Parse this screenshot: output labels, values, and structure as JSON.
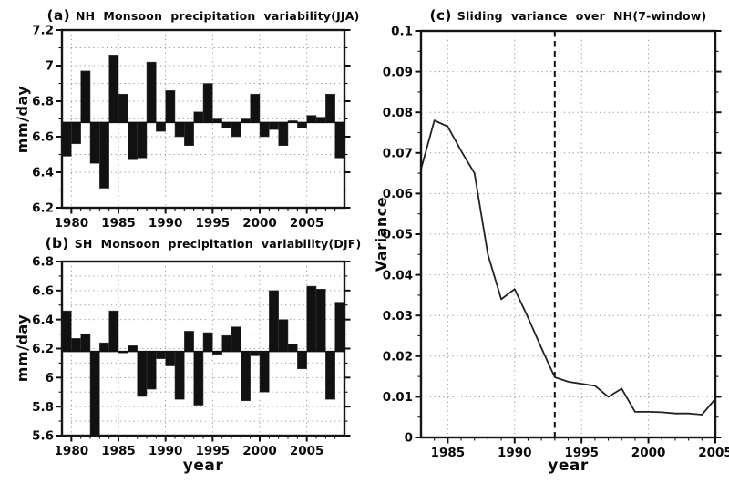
{
  "figure": {
    "background": "#ffffff",
    "ink": "#0a0a0a",
    "grid_color": "#9a9a9a",
    "bar_color": "#111111",
    "line_color": "#222222"
  },
  "chart_data": [
    {
      "id": "panel-a",
      "type": "bar",
      "title_prefix": "(a)",
      "title": "NH Monsoon precipitation variability(JJA)",
      "ylabel": "mm/day",
      "xlabel": "",
      "ylim": [
        6.2,
        7.2
      ],
      "xlim": [
        1979,
        2009
      ],
      "baseline": 6.68,
      "grid": "dotted",
      "yticks": [
        [
          6.2,
          "6.2"
        ],
        [
          6.4,
          "6.4"
        ],
        [
          6.6,
          "6.6"
        ],
        [
          6.8,
          "6.8"
        ],
        [
          7,
          "7"
        ],
        [
          7.2,
          "7.2"
        ]
      ],
      "xticks": [
        [
          1980,
          "1980"
        ],
        [
          1985,
          "1985"
        ],
        [
          1990,
          "1990"
        ],
        [
          1995,
          "1995"
        ],
        [
          2000,
          "2000"
        ],
        [
          2005,
          "2005"
        ]
      ],
      "yminor_step": 0.1,
      "xminor_step": 1,
      "ygrid_step": 0.1,
      "categories": [
        1979,
        1980,
        1981,
        1982,
        1983,
        1984,
        1985,
        1986,
        1987,
        1988,
        1989,
        1990,
        1991,
        1992,
        1993,
        1994,
        1995,
        1996,
        1997,
        1998,
        1999,
        2000,
        2001,
        2002,
        2003,
        2004,
        2005,
        2006,
        2007,
        2008
      ],
      "values": [
        6.49,
        6.56,
        6.97,
        6.45,
        6.31,
        7.06,
        6.84,
        6.47,
        6.48,
        7.02,
        6.63,
        6.86,
        6.6,
        6.55,
        6.74,
        6.9,
        6.7,
        6.65,
        6.6,
        6.7,
        6.84,
        6.6,
        6.64,
        6.55,
        6.69,
        6.65,
        6.72,
        6.71,
        6.84,
        6.48
      ]
    },
    {
      "id": "panel-b",
      "type": "bar",
      "title_prefix": "(b)",
      "title": "SH Monsoon precipitation variability(DJF)",
      "ylabel": "mm/day",
      "xlabel": "year",
      "ylim": [
        5.6,
        6.8
      ],
      "xlim": [
        1979,
        2009
      ],
      "baseline": 6.18,
      "grid": "dotted",
      "yticks": [
        [
          5.6,
          "5.6"
        ],
        [
          5.8,
          "5.8"
        ],
        [
          6,
          "6"
        ],
        [
          6.2,
          "6.2"
        ],
        [
          6.4,
          "6.4"
        ],
        [
          6.6,
          "6.6"
        ],
        [
          6.8,
          "6.8"
        ]
      ],
      "xticks": [
        [
          1980,
          "1980"
        ],
        [
          1985,
          "1985"
        ],
        [
          1990,
          "1990"
        ],
        [
          1995,
          "1995"
        ],
        [
          2000,
          "2000"
        ],
        [
          2005,
          "2005"
        ]
      ],
      "yminor_step": 0.1,
      "xminor_step": 1,
      "ygrid_step": 0.1,
      "categories": [
        1979,
        1980,
        1981,
        1982,
        1983,
        1984,
        1985,
        1986,
        1987,
        1988,
        1989,
        1990,
        1991,
        1992,
        1993,
        1994,
        1995,
        1996,
        1997,
        1998,
        1999,
        2000,
        2001,
        2002,
        2003,
        2004,
        2005,
        2006,
        2007,
        2008
      ],
      "values": [
        6.46,
        6.27,
        6.3,
        5.59,
        6.24,
        6.46,
        6.17,
        6.22,
        5.87,
        5.92,
        6.13,
        6.08,
        5.85,
        6.32,
        5.81,
        6.31,
        6.16,
        6.29,
        6.35,
        5.84,
        6.15,
        5.9,
        6.6,
        6.4,
        6.23,
        6.06,
        6.63,
        6.61,
        5.85,
        6.52
      ]
    },
    {
      "id": "panel-c",
      "type": "line",
      "title_prefix": "(c)",
      "title": "Sliding variance over NH(7-window)",
      "ylabel": "Variance",
      "xlabel": "year",
      "ylim": [
        0,
        0.1
      ],
      "xlim": [
        1983,
        2005
      ],
      "vline_x": 1993,
      "vline_style": "dashed",
      "grid": "dotted",
      "yticks": [
        [
          0,
          "0"
        ],
        [
          0.01,
          "0.01"
        ],
        [
          0.02,
          "0.02"
        ],
        [
          0.03,
          "0.03"
        ],
        [
          0.04,
          "0.04"
        ],
        [
          0.05,
          "0.05"
        ],
        [
          0.06,
          "0.06"
        ],
        [
          0.07,
          "0.07"
        ],
        [
          0.08,
          "0.08"
        ],
        [
          0.09,
          "0.09"
        ],
        [
          0.1,
          "0.1"
        ]
      ],
      "xticks": [
        [
          1985,
          "1985"
        ],
        [
          1990,
          "1990"
        ],
        [
          1995,
          "1995"
        ],
        [
          2000,
          "2000"
        ],
        [
          2005,
          "2005"
        ]
      ],
      "yminor_step": 0.005,
      "xminor_step": 1,
      "ygrid_step": 0.01,
      "x": [
        1983,
        1984,
        1985,
        1986,
        1987,
        1988,
        1989,
        1990,
        1991,
        1992,
        1993,
        1994,
        1995,
        1996,
        1997,
        1998,
        1999,
        2000,
        2001,
        2002,
        2003,
        2004,
        2005
      ],
      "y": [
        0.066,
        0.078,
        0.0765,
        0.0705,
        0.065,
        0.045,
        0.034,
        0.0365,
        0.0295,
        0.022,
        0.0148,
        0.0137,
        0.0132,
        0.0127,
        0.01,
        0.012,
        0.0063,
        0.0063,
        0.0062,
        0.0059,
        0.0059,
        0.0056,
        0.0095
      ]
    }
  ]
}
